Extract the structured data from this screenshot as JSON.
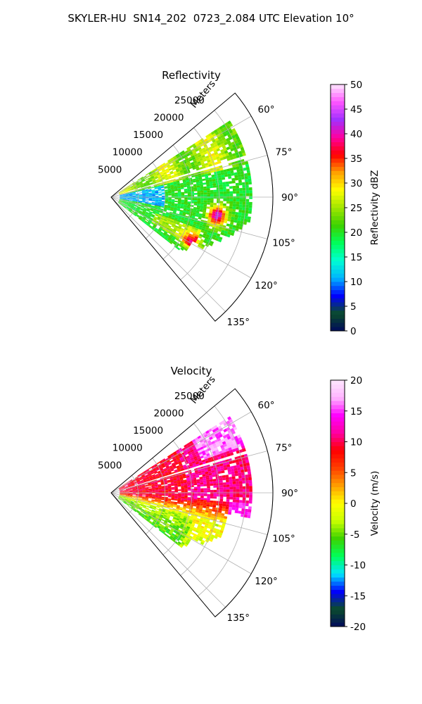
{
  "figure": {
    "title": "SKYLER-HU  SN14_202  0723_2.084 UTC Elevation 10°"
  },
  "chart_data": [
    {
      "type": "heatmap",
      "projection": "polar-sector",
      "title": "Reflectivity",
      "radial_label": "Meters",
      "r_ticks": [
        "5000",
        "10000",
        "15000",
        "20000",
        "25000"
      ],
      "r_max": 30000,
      "theta_ticks": [
        "60°",
        "75°",
        "90°",
        "105°",
        "120°",
        "135°"
      ],
      "theta_range_deg": [
        50,
        140
      ],
      "grid": true,
      "colorbar": {
        "label": "Reflectivity dBZ",
        "min": 0,
        "max": 50,
        "ticks": [
          "0",
          "5",
          "10",
          "15",
          "20",
          "25",
          "30",
          "35",
          "40",
          "45",
          "50"
        ],
        "stops": [
          "#000a5c",
          "#0b4d2a",
          "#0000ff",
          "#00b4ff",
          "#00ffd2",
          "#00ff5a",
          "#3cd200",
          "#a0e600",
          "#ffff00",
          "#ffa000",
          "#ff0000",
          "#ff00a0",
          "#a030ff",
          "#ff55ff",
          "#ffe6ff"
        ]
      },
      "features": [
        {
          "id": "mainband",
          "az_range": [
            58,
            128
          ],
          "r_range": [
            4000,
            26000
          ],
          "dBZ": 22
        },
        {
          "id": "band-north",
          "az_range": [
            62,
            75
          ],
          "r_range": [
            5000,
            24000
          ],
          "dBZ": 27
        },
        {
          "id": "core-east",
          "az": 100,
          "r": 20000,
          "dBZ": 42
        },
        {
          "id": "cell-southwest",
          "az": 119,
          "r": 17000,
          "dBZ": 36
        },
        {
          "id": "weak-near",
          "az_range": [
            78,
            100
          ],
          "r_range": [
            2000,
            9000
          ],
          "dBZ": 12
        }
      ]
    },
    {
      "type": "heatmap",
      "projection": "polar-sector",
      "title": "Velocity",
      "radial_label": "Meters",
      "r_ticks": [
        "5000",
        "10000",
        "15000",
        "20000",
        "25000"
      ],
      "r_max": 30000,
      "theta_ticks": [
        "60°",
        "75°",
        "90°",
        "105°",
        "120°",
        "135°"
      ],
      "theta_range_deg": [
        50,
        140
      ],
      "grid": true,
      "colorbar": {
        "label": "Velocity (m/s)",
        "min": -20,
        "max": 20,
        "ticks": [
          "-20",
          "-15",
          "-10",
          "-5",
          "0",
          "5",
          "10",
          "15",
          "20"
        ],
        "stops": [
          "#000a5c",
          "#0b4d2a",
          "#0000ff",
          "#00e6ff",
          "#00ff5a",
          "#3cd200",
          "#c8ff00",
          "#ffff00",
          "#ffa000",
          "#ff4000",
          "#ff0000",
          "#ff00a0",
          "#ff00ff",
          "#ffb4ff",
          "#ffe6ff"
        ]
      },
      "features": [
        {
          "id": "outbound-north",
          "az_range": [
            58,
            96
          ],
          "r_range": [
            4000,
            26000
          ],
          "v": 10
        },
        {
          "id": "strong-outbound",
          "az_range": [
            58,
            68
          ],
          "r_range": [
            19000,
            26000
          ],
          "v": 16
        },
        {
          "id": "transition",
          "az_range": [
            95,
            106
          ],
          "r_range": [
            5000,
            25000
          ],
          "v": 3
        },
        {
          "id": "inbound-south",
          "az_range": [
            110,
            128
          ],
          "r_range": [
            8000,
            20000
          ],
          "v": -4
        }
      ]
    }
  ]
}
